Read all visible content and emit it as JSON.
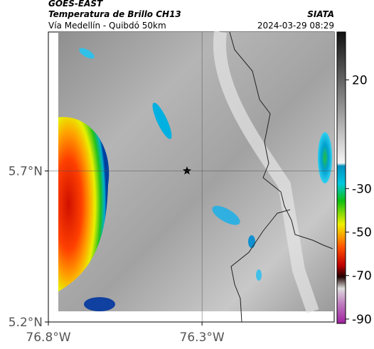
{
  "header": {
    "source": "GOES-EAST",
    "product": "Temperatura de Brillo CH13",
    "agency": "SIATA",
    "route": "Vía Medellín - Quibdó 50km",
    "datetime": "2024-03-29 08:29"
  },
  "map": {
    "xlim": [
      -76.8,
      -75.87
    ],
    "ylim": [
      5.2,
      6.16
    ],
    "xticks": [
      {
        "value": -76.8,
        "label": "76.8°W"
      },
      {
        "value": -76.3,
        "label": "76.3°W"
      }
    ],
    "yticks": [
      {
        "value": 5.2,
        "label": "5.2°N"
      },
      {
        "value": 5.7,
        "label": "5.7°N"
      }
    ]
  },
  "colorbar": {
    "lim": [
      42,
      -92
    ],
    "ticks": [
      20,
      -30,
      -50,
      -70,
      -90
    ]
  }
}
